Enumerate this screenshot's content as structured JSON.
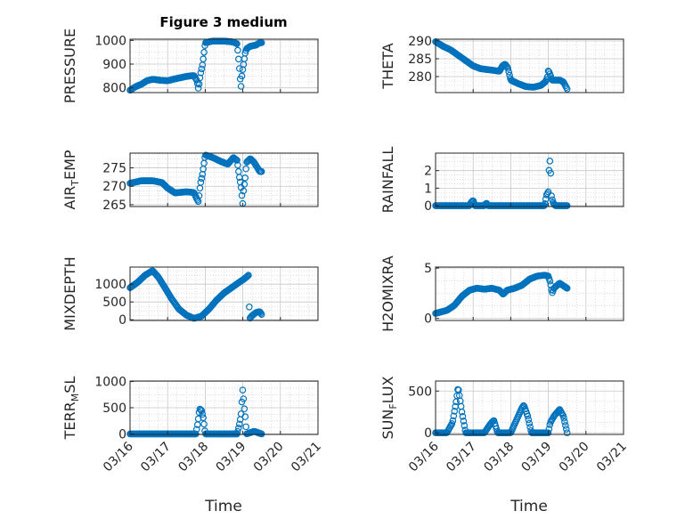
{
  "figure": {
    "title": "Figure 3 medium",
    "xlabel": "Time"
  },
  "style": {
    "marker_color": "#0072BD",
    "axis_color": "#262626",
    "grid_color": "#c8c8c8"
  },
  "chart_data": [
    {
      "type": "scatter",
      "panel": "top-left",
      "ylabel": "PRESSURE",
      "ylim": [
        780,
        1005
      ],
      "yticks": [
        800,
        900,
        1000
      ],
      "xlim": [
        "03/16",
        "03/21"
      ],
      "xticks": [
        "03/16",
        "03/17",
        "03/18",
        "03/19",
        "03/20",
        "03/21"
      ],
      "x_tick_labels_shown": false,
      "grid": true,
      "anchors": [
        [
          0,
          790
        ],
        [
          0.15,
          805
        ],
        [
          0.3,
          815
        ],
        [
          0.45,
          830
        ],
        [
          0.6,
          836
        ],
        [
          0.8,
          832
        ],
        [
          1.0,
          830
        ],
        [
          1.2,
          838
        ],
        [
          1.5,
          848
        ],
        [
          1.7,
          852
        ],
        [
          1.78,
          830
        ],
        [
          1.82,
          795
        ],
        [
          1.87,
          855
        ],
        [
          1.93,
          900
        ],
        [
          2.0,
          990
        ],
        [
          2.2,
          997
        ],
        [
          2.5,
          997
        ],
        [
          2.75,
          993
        ],
        [
          2.85,
          985
        ],
        [
          2.9,
          900
        ],
        [
          2.95,
          800
        ],
        [
          2.98,
          860
        ],
        [
          3.0,
          880
        ],
        [
          3.03,
          910
        ],
        [
          3.06,
          945
        ],
        [
          3.1,
          965
        ],
        [
          3.2,
          975
        ],
        [
          3.35,
          980
        ],
        [
          3.45,
          990
        ]
      ]
    },
    {
      "type": "scatter",
      "panel": "top-right",
      "ylabel": "THETA",
      "ylim": [
        275.5,
        290.5
      ],
      "yticks": [
        280,
        285,
        290
      ],
      "xlim": [
        "03/16",
        "03/21"
      ],
      "xticks": [
        "03/16",
        "03/17",
        "03/18",
        "03/19",
        "03/20",
        "03/21"
      ],
      "x_tick_labels_shown": false,
      "grid": true,
      "anchors": [
        [
          0,
          289.8
        ],
        [
          0.2,
          288.5
        ],
        [
          0.4,
          287.5
        ],
        [
          0.6,
          286.0
        ],
        [
          0.8,
          284.5
        ],
        [
          1.0,
          283.0
        ],
        [
          1.2,
          282.2
        ],
        [
          1.5,
          281.8
        ],
        [
          1.7,
          281.5
        ],
        [
          1.78,
          283.0
        ],
        [
          1.85,
          283.5
        ],
        [
          1.92,
          282.5
        ],
        [
          2.0,
          279.0
        ],
        [
          2.2,
          278.0
        ],
        [
          2.4,
          277.2
        ],
        [
          2.6,
          277.0
        ],
        [
          2.8,
          277.5
        ],
        [
          2.92,
          278.5
        ],
        [
          2.97,
          279.5
        ],
        [
          3.0,
          281.8
        ],
        [
          3.05,
          280.5
        ],
        [
          3.1,
          279.0
        ],
        [
          3.3,
          279.0
        ],
        [
          3.4,
          278.5
        ],
        [
          3.45,
          277.5
        ],
        [
          3.5,
          276.5
        ]
      ]
    },
    {
      "type": "scatter",
      "panel": "middle-left-1",
      "ylabel": "AIR_TEMP",
      "ylabel_base": "AIR",
      "ylabel_sub": "T",
      "ylabel_rest": "EMP",
      "ylim": [
        264.5,
        279
      ],
      "yticks": [
        265,
        270,
        275
      ],
      "xlim": [
        "03/16",
        "03/21"
      ],
      "xticks": [
        "03/16",
        "03/17",
        "03/18",
        "03/19",
        "03/20",
        "03/21"
      ],
      "x_tick_labels_shown": false,
      "grid": true,
      "anchors": [
        [
          0,
          270.8
        ],
        [
          0.3,
          271.5
        ],
        [
          0.6,
          271.5
        ],
        [
          0.85,
          271.0
        ],
        [
          1.0,
          269.5
        ],
        [
          1.2,
          268.2
        ],
        [
          1.5,
          268.5
        ],
        [
          1.7,
          268.3
        ],
        [
          1.78,
          266.5
        ],
        [
          1.82,
          265.8
        ],
        [
          1.87,
          270.5
        ],
        [
          1.93,
          273.5
        ],
        [
          2.0,
          278.5
        ],
        [
          2.2,
          277.8
        ],
        [
          2.4,
          276.8
        ],
        [
          2.6,
          276.0
        ],
        [
          2.75,
          277.8
        ],
        [
          2.85,
          277.0
        ],
        [
          2.9,
          273.0
        ],
        [
          2.95,
          270.0
        ],
        [
          3.0,
          265.0
        ],
        [
          3.02,
          269.0
        ],
        [
          3.06,
          272.0
        ],
        [
          3.1,
          276.5
        ],
        [
          3.2,
          277.5
        ],
        [
          3.3,
          276.5
        ],
        [
          3.45,
          274.0
        ]
      ]
    },
    {
      "type": "scatter",
      "panel": "middle-right-1",
      "ylabel": "RAINFALL",
      "ylim": [
        -0.05,
        3.0
      ],
      "yticks": [
        0,
        1,
        2
      ],
      "xlim": [
        "03/16",
        "03/21"
      ],
      "xticks": [
        "03/16",
        "03/17",
        "03/18",
        "03/19",
        "03/20",
        "03/21"
      ],
      "x_tick_labels_shown": false,
      "grid": true,
      "anchors": [
        [
          0,
          0
        ],
        [
          0.9,
          0
        ],
        [
          0.95,
          0.2
        ],
        [
          1.0,
          0.3
        ],
        [
          1.05,
          0
        ],
        [
          1.3,
          0
        ],
        [
          1.35,
          0.15
        ],
        [
          1.4,
          0
        ],
        [
          2.9,
          0
        ],
        [
          2.95,
          0.6
        ],
        [
          3.0,
          0.8
        ],
        [
          3.02,
          2.1
        ],
        [
          3.05,
          2.75
        ],
        [
          3.08,
          0.6
        ],
        [
          3.12,
          0.2
        ],
        [
          3.18,
          0
        ],
        [
          3.5,
          0
        ]
      ]
    },
    {
      "type": "scatter",
      "panel": "middle-left-2",
      "ylabel": "MIXDEPTH",
      "ylim": [
        -20,
        1480
      ],
      "yticks": [
        0,
        500,
        1000
      ],
      "xlim": [
        "03/16",
        "03/21"
      ],
      "xticks": [
        "03/16",
        "03/17",
        "03/18",
        "03/19",
        "03/20",
        "03/21"
      ],
      "x_tick_labels_shown": false,
      "grid": true,
      "anchors": [
        [
          0,
          900
        ],
        [
          0.2,
          1050
        ],
        [
          0.4,
          1250
        ],
        [
          0.6,
          1380
        ],
        [
          0.75,
          1200
        ],
        [
          0.9,
          950
        ],
        [
          1.1,
          600
        ],
        [
          1.3,
          300
        ],
        [
          1.5,
          130
        ],
        [
          1.7,
          40
        ],
        [
          1.9,
          100
        ],
        [
          2.1,
          300
        ],
        [
          2.3,
          550
        ],
        [
          2.5,
          750
        ],
        [
          2.7,
          900
        ],
        [
          2.9,
          1050
        ],
        [
          3.0,
          1120
        ],
        [
          3.1,
          1200
        ],
        [
          3.15,
          1250
        ],
        [
          3.18,
          30
        ],
        [
          3.25,
          120
        ],
        [
          3.35,
          200
        ],
        [
          3.45,
          230
        ],
        [
          3.5,
          150
        ]
      ]
    },
    {
      "type": "scatter",
      "panel": "middle-right-2",
      "ylabel": "H2OMIXRA",
      "ylim": [
        -0.2,
        5.1
      ],
      "yticks": [
        0,
        5
      ],
      "xlim": [
        "03/16",
        "03/21"
      ],
      "xticks": [
        "03/16",
        "03/17",
        "03/18",
        "03/19",
        "03/20",
        "03/21"
      ],
      "x_tick_labels_shown": false,
      "grid": true,
      "anchors": [
        [
          0,
          0.5
        ],
        [
          0.3,
          0.8
        ],
        [
          0.5,
          1.3
        ],
        [
          0.7,
          2.2
        ],
        [
          0.9,
          2.8
        ],
        [
          1.1,
          3.0
        ],
        [
          1.3,
          2.9
        ],
        [
          1.5,
          3.0
        ],
        [
          1.7,
          2.8
        ],
        [
          1.8,
          2.4
        ],
        [
          1.9,
          2.8
        ],
        [
          2.1,
          3.0
        ],
        [
          2.3,
          3.3
        ],
        [
          2.5,
          3.9
        ],
        [
          2.7,
          4.2
        ],
        [
          2.9,
          4.3
        ],
        [
          3.0,
          4.2
        ],
        [
          3.05,
          3.6
        ],
        [
          3.1,
          2.5
        ],
        [
          3.15,
          3.0
        ],
        [
          3.3,
          3.5
        ],
        [
          3.5,
          3.0
        ]
      ]
    },
    {
      "type": "scatter",
      "panel": "bottom-left",
      "ylabel": "TERR_MSL",
      "ylabel_base": "TERR",
      "ylabel_sub": "M",
      "ylabel_rest": "SL",
      "ylim": [
        -10,
        1010
      ],
      "yticks": [
        0,
        500,
        1000
      ],
      "xlim": [
        "03/16",
        "03/21"
      ],
      "xticks": [
        "03/16",
        "03/17",
        "03/18",
        "03/19",
        "03/20",
        "03/21"
      ],
      "x_tick_labels_shown": true,
      "grid": true,
      "anchors": [
        [
          0,
          0
        ],
        [
          1.75,
          0
        ],
        [
          1.8,
          200
        ],
        [
          1.85,
          480
        ],
        [
          1.9,
          450
        ],
        [
          1.95,
          300
        ],
        [
          2.0,
          0
        ],
        [
          2.85,
          0
        ],
        [
          2.9,
          150
        ],
        [
          2.95,
          350
        ],
        [
          3.0,
          870
        ],
        [
          3.03,
          550
        ],
        [
          3.06,
          350
        ],
        [
          3.1,
          0
        ],
        [
          3.3,
          50
        ],
        [
          3.5,
          0
        ]
      ]
    },
    {
      "type": "scatter",
      "panel": "bottom-right",
      "ylabel": "SUN_FLUX",
      "ylabel_base": "SUN",
      "ylabel_sub": "F",
      "ylabel_rest": "LUX",
      "ylim": [
        -20,
        620
      ],
      "yticks": [
        0,
        500
      ],
      "xlim": [
        "03/16",
        "03/21"
      ],
      "xticks": [
        "03/16",
        "03/17",
        "03/18",
        "03/19",
        "03/20",
        "03/21"
      ],
      "x_tick_labels_shown": true,
      "grid": true,
      "anchors": [
        [
          0,
          0
        ],
        [
          0.3,
          0
        ],
        [
          0.45,
          120
        ],
        [
          0.55,
          380
        ],
        [
          0.6,
          550
        ],
        [
          0.7,
          250
        ],
        [
          0.8,
          0
        ],
        [
          1.3,
          0
        ],
        [
          1.45,
          100
        ],
        [
          1.55,
          150
        ],
        [
          1.65,
          0
        ],
        [
          2.0,
          0
        ],
        [
          2.15,
          150
        ],
        [
          2.3,
          300
        ],
        [
          2.35,
          330
        ],
        [
          2.45,
          200
        ],
        [
          2.55,
          0
        ],
        [
          3.0,
          0
        ],
        [
          3.05,
          120
        ],
        [
          3.15,
          200
        ],
        [
          3.3,
          280
        ],
        [
          3.4,
          200
        ],
        [
          3.5,
          0
        ]
      ]
    }
  ]
}
